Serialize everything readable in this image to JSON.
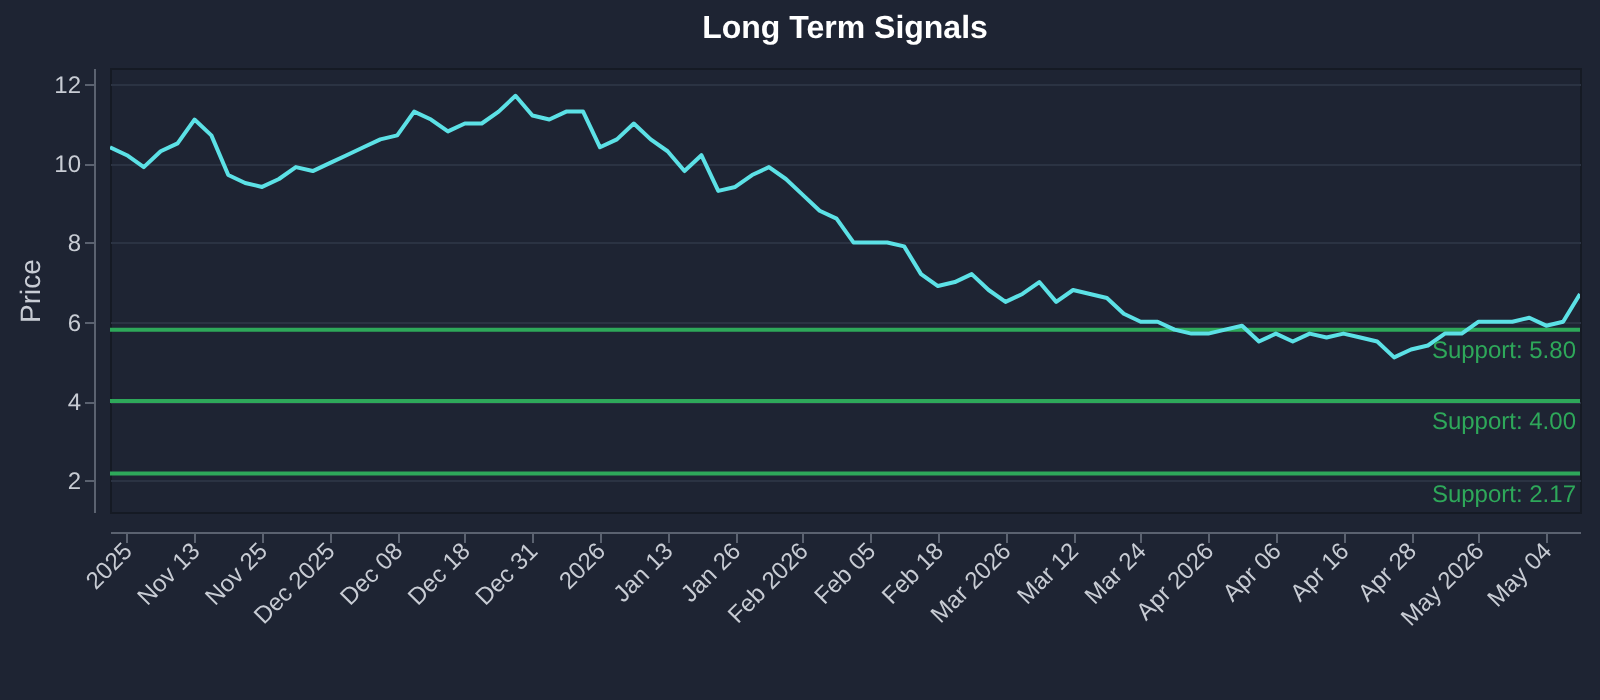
{
  "chart_data": {
    "type": "line",
    "title": "Long Term Signals",
    "ylabel": "Price",
    "categories": [
      null,
      "2025",
      null,
      null,
      null,
      "Nov 13",
      null,
      null,
      null,
      "Nov 25",
      null,
      null,
      null,
      "Dec 2025",
      null,
      null,
      null,
      "Dec 08",
      null,
      null,
      null,
      "Dec 18",
      null,
      null,
      null,
      "Dec 31",
      null,
      null,
      null,
      "2026",
      null,
      null,
      null,
      "Jan 13",
      null,
      null,
      null,
      "Jan 26",
      null,
      null,
      null,
      "Feb 2026",
      null,
      null,
      null,
      "Feb 05",
      null,
      null,
      null,
      "Feb 18",
      null,
      null,
      null,
      "Mar 2026",
      null,
      null,
      null,
      "Mar 12",
      null,
      null,
      null,
      "Mar 24",
      null,
      null,
      null,
      "Apr 2026",
      null,
      null,
      null,
      "Apr 06",
      null,
      null,
      null,
      "Apr 16",
      null,
      null,
      null,
      "Apr 28",
      null,
      null,
      null,
      "May 2026",
      null,
      null,
      null,
      "May 04",
      null,
      null
    ],
    "series": [
      {
        "color": "#5ce1e6",
        "values": [
          10.4,
          10.2,
          9.9,
          10.3,
          10.5,
          11.1,
          10.7,
          9.7,
          9.5,
          9.4,
          9.6,
          9.9,
          9.8,
          10.0,
          10.2,
          10.4,
          10.6,
          10.7,
          11.3,
          11.1,
          10.8,
          11.0,
          11.0,
          11.3,
          11.7,
          11.2,
          11.1,
          11.3,
          11.3,
          10.4,
          10.6,
          11.0,
          10.6,
          10.3,
          9.8,
          10.2,
          9.3,
          9.4,
          9.7,
          9.9,
          9.6,
          9.2,
          8.8,
          8.6,
          8.0,
          8.0,
          8.0,
          7.9,
          7.2,
          6.9,
          7.0,
          7.2,
          6.8,
          6.5,
          6.7,
          7.0,
          6.5,
          6.8,
          6.7,
          6.6,
          6.2,
          6.0,
          6.0,
          5.8,
          5.7,
          5.7,
          5.8,
          5.9,
          5.5,
          5.7,
          5.5,
          5.7,
          5.6,
          5.7,
          5.6,
          5.5,
          5.1,
          5.3,
          5.4,
          5.7,
          5.7,
          6.0,
          6.0,
          6.0,
          6.1,
          5.9,
          6.0,
          6.7
        ]
      }
    ],
    "ylim": [
      1.2,
      12.4
    ],
    "yticks": [
      2,
      4,
      6,
      8,
      10,
      12
    ],
    "grid": "y",
    "line_style": "solid",
    "ref_lines": [
      {
        "axis": "y",
        "value": 5.8,
        "label": "Support: 5.80",
        "color": "#2ea85a"
      },
      {
        "axis": "y",
        "value": 4.0,
        "label": "Support: 4.00",
        "color": "#2ea85a"
      },
      {
        "axis": "y",
        "value": 2.17,
        "label": "Support: 2.17",
        "color": "#2ea85a"
      }
    ]
  }
}
